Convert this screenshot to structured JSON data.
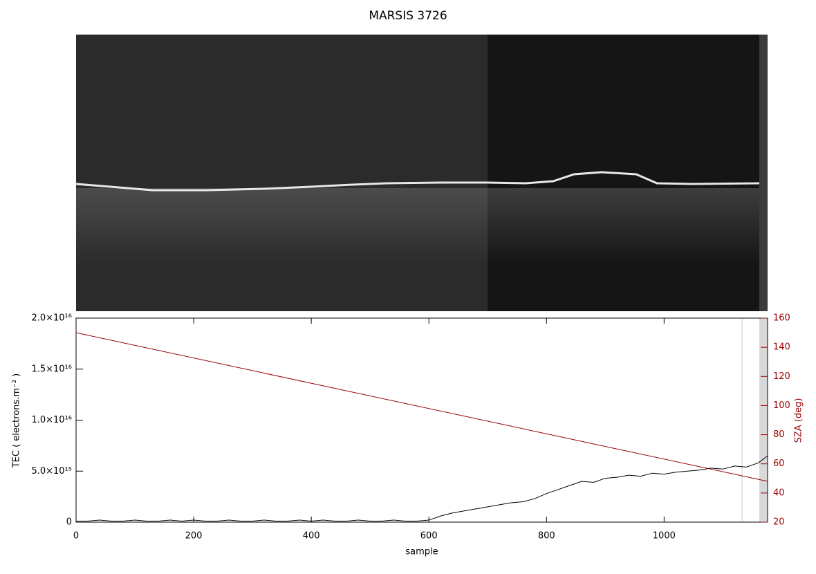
{
  "chart_data": {
    "type": "line",
    "title": "MARSIS 3726",
    "xlabel": "sample",
    "ylabel": "TEC ( electrons.m⁻² )",
    "y2label": "SZA (deg)",
    "xlim": [
      0,
      1176
    ],
    "xticks": [
      0,
      200,
      400,
      600,
      800,
      1000
    ],
    "ylim": [
      0,
      2e+16
    ],
    "yticks": [
      0,
      {
        "value": 5000000000000000.0,
        "label": "5.0×10¹⁵"
      },
      {
        "value": 1e+16,
        "label": "1.0×10¹⁶"
      },
      {
        "value": 1.5e+16,
        "label": "1.5×10¹⁶"
      },
      {
        "value": 2e+16,
        "label": "2.0×10¹⁶"
      }
    ],
    "y2lim": [
      20,
      160
    ],
    "y2ticks": [
      20,
      40,
      60,
      80,
      100,
      120,
      140,
      160
    ],
    "series": [
      {
        "color": "#000000",
        "x": [
          0,
          20,
          40,
          60,
          80,
          100,
          120,
          140,
          160,
          180,
          200,
          220,
          240,
          260,
          280,
          300,
          320,
          340,
          360,
          380,
          400,
          420,
          440,
          460,
          480,
          500,
          520,
          540,
          560,
          580,
          600,
          620,
          640,
          660,
          680,
          700,
          720,
          740,
          760,
          780,
          800,
          820,
          840,
          860,
          880,
          900,
          920,
          940,
          960,
          980,
          1000,
          1020,
          1040,
          1060,
          1080,
          1100,
          1120,
          1140,
          1160,
          1176
        ],
        "values": [
          100000000000000.0,
          100000000000000.0,
          200000000000000.0,
          100000000000000.0,
          100000000000000.0,
          200000000000000.0,
          100000000000000.0,
          100000000000000.0,
          200000000000000.0,
          100000000000000.0,
          200000000000000.0,
          100000000000000.0,
          100000000000000.0,
          200000000000000.0,
          100000000000000.0,
          100000000000000.0,
          200000000000000.0,
          100000000000000.0,
          100000000000000.0,
          200000000000000.0,
          100000000000000.0,
          200000000000000.0,
          100000000000000.0,
          100000000000000.0,
          200000000000000.0,
          100000000000000.0,
          100000000000000.0,
          200000000000000.0,
          100000000000000.0,
          100000000000000.0,
          200000000000000.0,
          600000000000000.0,
          900000000000000.0,
          1100000000000000.0,
          1300000000000000.0,
          1500000000000000.0,
          1700000000000000.0,
          1900000000000000.0,
          2000000000000000.0,
          2300000000000000.0,
          2800000000000000.0,
          3200000000000000.0,
          3600000000000000.0,
          4000000000000000.0,
          3900000000000000.0,
          4300000000000000.0,
          4400000000000000.0,
          4600000000000000.0,
          4500000000000000.0,
          4800000000000000.0,
          4700000000000000.0,
          4900000000000000.0,
          5000000000000000.0,
          5100000000000000.0,
          5300000000000000.0,
          5200000000000000.0,
          5500000000000000.0,
          5400000000000000.0,
          5800000000000000.0,
          6500000000000000.0
        ]
      },
      {
        "color": "#990000",
        "axis": "y2",
        "x": [
          0,
          1176
        ],
        "values": [
          150,
          48
        ]
      }
    ]
  }
}
